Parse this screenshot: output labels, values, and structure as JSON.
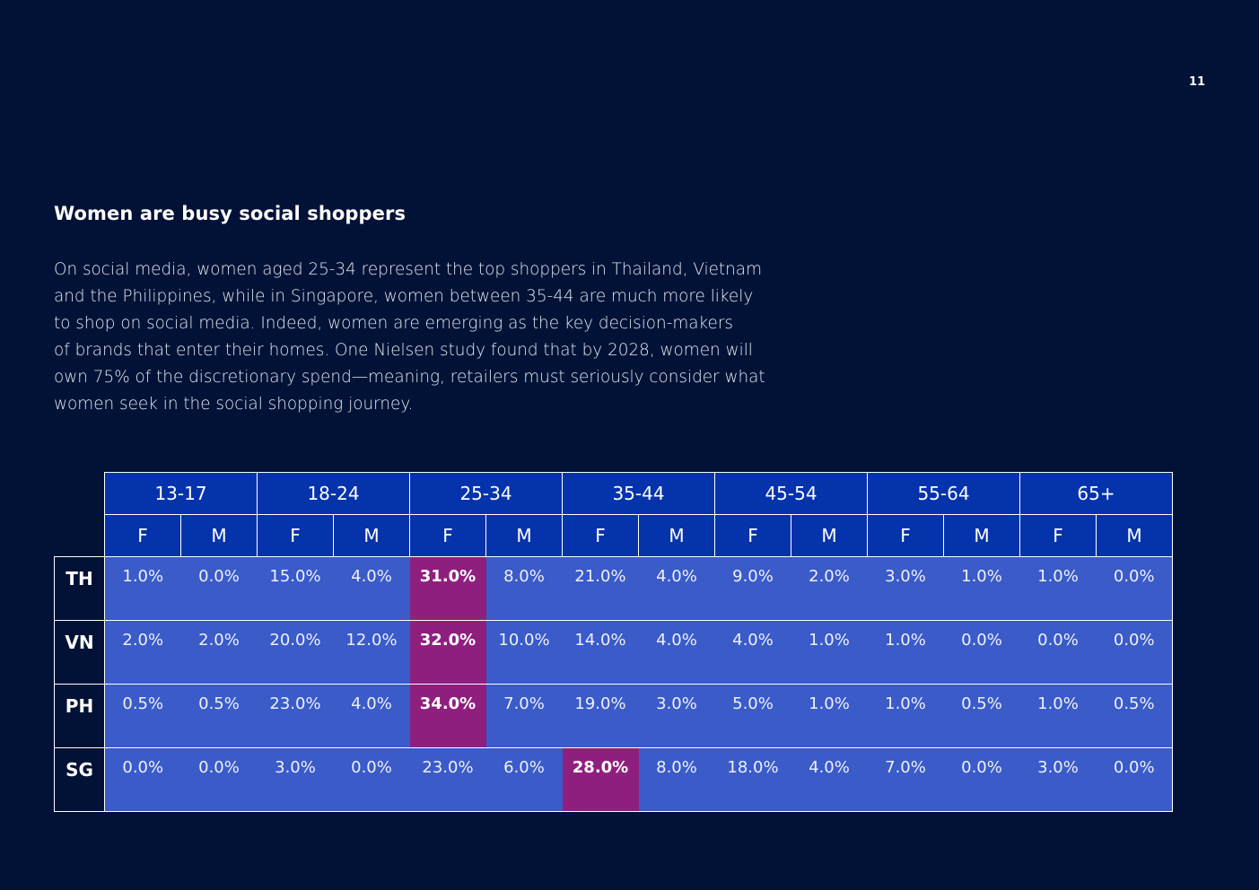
{
  "page_number": "11",
  "heading": "Women are busy social shoppers",
  "body_lines": [
    "On social media, women aged 25-34 represent the top shoppers in Thailand, Vietnam",
    "and the Philippines, while in Singapore, women between 35-44 are much more likely",
    "to shop on social media. Indeed, women are emerging as the key decision-makers",
    "of brands that enter their homes. One Nielsen study found that by 2028, women will",
    "own 75% of the discretionary spend—meaning, retailers must seriously consider what",
    "women seek in the social shopping journey."
  ],
  "colors": {
    "background": "#021236",
    "header_fill": "#0533ab",
    "cell_fill": "#3a5bc8",
    "highlight_fill": "#8f1f7e"
  },
  "table": {
    "age_groups": [
      "13-17",
      "18-24",
      "25-34",
      "35-44",
      "45-54",
      "55-64",
      "65+"
    ],
    "sex_labels": [
      "F",
      "M"
    ],
    "rows": [
      {
        "country": "TH",
        "values": [
          "1.0%",
          "0.0%",
          "15.0%",
          "4.0%",
          "31.0%",
          "8.0%",
          "21.0%",
          "4.0%",
          "9.0%",
          "2.0%",
          "3.0%",
          "1.0%",
          "1.0%",
          "0.0%"
        ],
        "highlight_index": 4
      },
      {
        "country": "VN",
        "values": [
          "2.0%",
          "2.0%",
          "20.0%",
          "12.0%",
          "32.0%",
          "10.0%",
          "14.0%",
          "4.0%",
          "4.0%",
          "1.0%",
          "1.0%",
          "0.0%",
          "0.0%",
          "0.0%"
        ],
        "highlight_index": 4
      },
      {
        "country": "PH",
        "values": [
          "0.5%",
          "0.5%",
          "23.0%",
          "4.0%",
          "34.0%",
          "7.0%",
          "19.0%",
          "3.0%",
          "5.0%",
          "1.0%",
          "1.0%",
          "0.5%",
          "1.0%",
          "0.5%"
        ],
        "highlight_index": 4
      },
      {
        "country": "SG",
        "values": [
          "0.0%",
          "0.0%",
          "3.0%",
          "0.0%",
          "23.0%",
          "6.0%",
          "28.0%",
          "8.0%",
          "18.0%",
          "4.0%",
          "7.0%",
          "0.0%",
          "3.0%",
          "0.0%"
        ],
        "highlight_index": 6
      }
    ]
  }
}
